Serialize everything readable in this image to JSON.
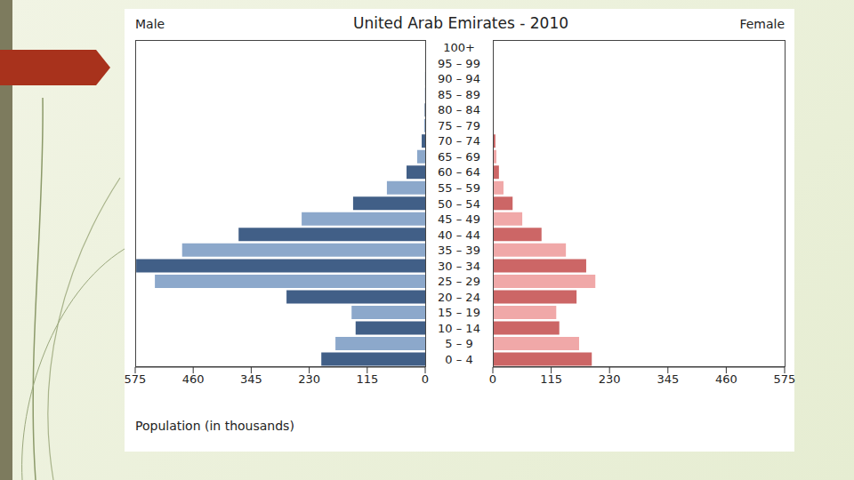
{
  "chart_data": {
    "type": "bar",
    "orientation": "horizontal",
    "title": "United Arab Emirates - 2010",
    "x_label": "Population (in thousands)",
    "categories": [
      "0 – 4",
      "5 – 9",
      "10 – 14",
      "15 – 19",
      "20 – 24",
      "25 – 29",
      "30 – 34",
      "35 – 39",
      "40 – 44",
      "45 – 49",
      "50 – 54",
      "55 – 59",
      "60 – 64",
      "65 – 69",
      "70 – 74",
      "75 – 79",
      "80 – 84",
      "85 – 89",
      "90 – 94",
      "95 – 99",
      "100+"
    ],
    "series": [
      {
        "name": "Male",
        "colors": [
          "#415f87",
          "#8ca8cb",
          "#415f87",
          "#8ca8cb",
          "#415f87",
          "#8ca8cb",
          "#415f87",
          "#8ca8cb",
          "#415f87",
          "#8ca8cb",
          "#415f87",
          "#8ca8cb",
          "#415f87",
          "#8ca8cb",
          "#415f87",
          "#8ca8cb",
          "#415f87",
          "#8ca8cb",
          "#415f87",
          "#8ca8cb",
          "#415f87"
        ],
        "values": [
          206,
          178,
          138,
          146,
          275,
          536,
          573,
          482,
          370,
          245,
          143,
          76,
          37,
          16,
          7,
          2,
          1,
          0.5,
          0.2,
          0.1,
          0
        ]
      },
      {
        "name": "Female",
        "colors": [
          "#cc6666",
          "#f0a8a8",
          "#cc6666",
          "#f0a8a8",
          "#cc6666",
          "#f0a8a8",
          "#cc6666",
          "#f0a8a8",
          "#cc6666",
          "#f0a8a8",
          "#cc6666",
          "#f0a8a8",
          "#cc6666",
          "#f0a8a8",
          "#cc6666",
          "#f0a8a8",
          "#cc6666",
          "#f0a8a8",
          "#cc6666",
          "#f0a8a8",
          "#cc6666"
        ],
        "values": [
          195,
          170,
          131,
          125,
          165,
          202,
          184,
          144,
          96,
          58,
          39,
          21,
          12,
          7,
          5,
          2,
          1,
          0.5,
          0.2,
          0.1,
          0
        ]
      }
    ],
    "xlim": [
      0,
      575
    ],
    "xticks": [
      0,
      115,
      230,
      345,
      460,
      575
    ]
  }
}
